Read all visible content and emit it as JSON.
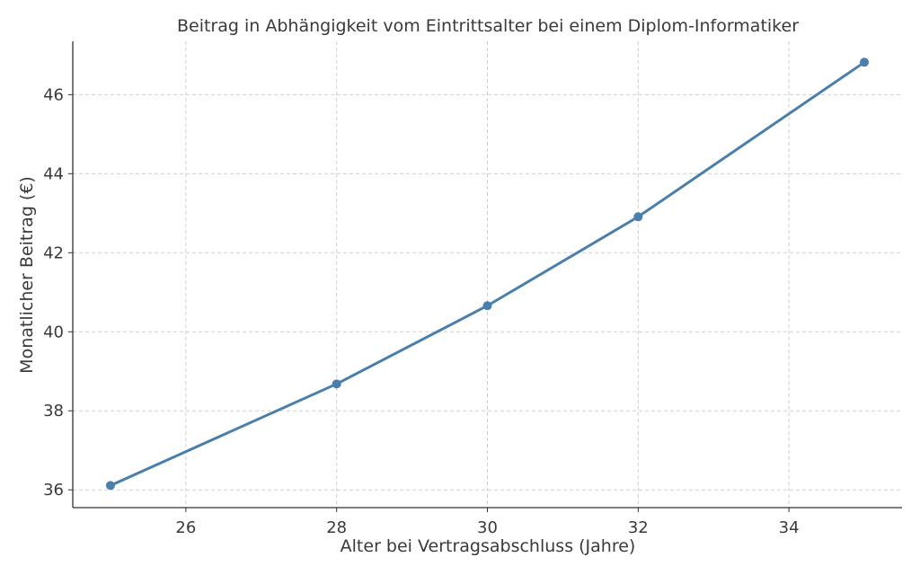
{
  "chart_data": {
    "type": "line",
    "title": "Beitrag in Abhängigkeit vom Eintrittsalter bei einem Diplom-Informatiker",
    "xlabel": "Alter bei Vertragsabschluss (Jahre)",
    "ylabel": "Monatlicher Beitrag (€)",
    "x": [
      25,
      28,
      30,
      32,
      35
    ],
    "series": [
      {
        "name": "Monatlicher Beitrag",
        "values": [
          36.11,
          38.68,
          40.66,
          42.91,
          46.82
        ],
        "color": "#4a7fab"
      }
    ],
    "xticks": [
      26,
      28,
      30,
      32,
      34
    ],
    "yticks": [
      36,
      38,
      40,
      42,
      44,
      46
    ],
    "xlim": [
      24.5,
      35.5
    ],
    "ylim": [
      35.55,
      47.35
    ],
    "grid": true,
    "legend": null
  }
}
